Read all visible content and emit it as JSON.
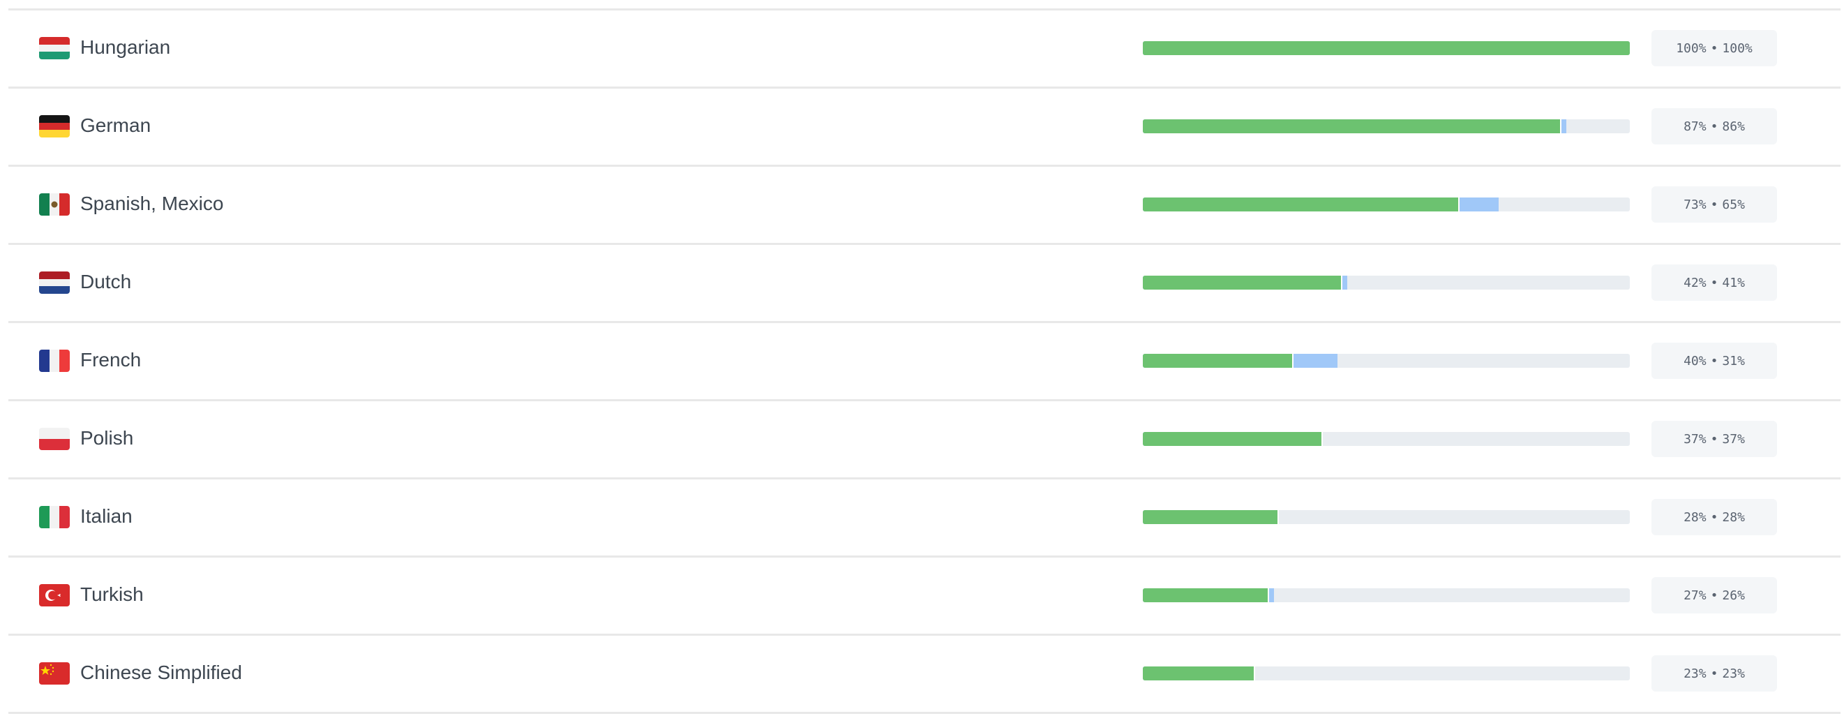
{
  "colors": {
    "approved": "#6cc270",
    "translated": "#a0c8f8",
    "track": "#e9edf1"
  },
  "separator": "•",
  "languages": [
    {
      "name": "Hungarian",
      "flag": "hungary-flag-icon",
      "translated": 100,
      "approved": 100,
      "translated_label": "100%",
      "approved_label": "100%"
    },
    {
      "name": "German",
      "flag": "germany-flag-icon",
      "translated": 87,
      "approved": 86,
      "translated_label": "87%",
      "approved_label": "86%"
    },
    {
      "name": "Spanish, Mexico",
      "flag": "mexico-flag-icon",
      "translated": 73,
      "approved": 65,
      "translated_label": "73%",
      "approved_label": "65%"
    },
    {
      "name": "Dutch",
      "flag": "netherlands-flag-icon",
      "translated": 42,
      "approved": 41,
      "translated_label": "42%",
      "approved_label": "41%"
    },
    {
      "name": "French",
      "flag": "france-flag-icon",
      "translated": 40,
      "approved": 31,
      "translated_label": "40%",
      "approved_label": "31%"
    },
    {
      "name": "Polish",
      "flag": "poland-flag-icon",
      "translated": 37,
      "approved": 37,
      "translated_label": "37%",
      "approved_label": "37%"
    },
    {
      "name": "Italian",
      "flag": "italy-flag-icon",
      "translated": 28,
      "approved": 28,
      "translated_label": "28%",
      "approved_label": "28%"
    },
    {
      "name": "Turkish",
      "flag": "turkey-flag-icon",
      "translated": 27,
      "approved": 26,
      "translated_label": "27%",
      "approved_label": "26%"
    },
    {
      "name": "Chinese Simplified",
      "flag": "china-flag-icon",
      "translated": 23,
      "approved": 23,
      "translated_label": "23%",
      "approved_label": "23%"
    }
  ]
}
